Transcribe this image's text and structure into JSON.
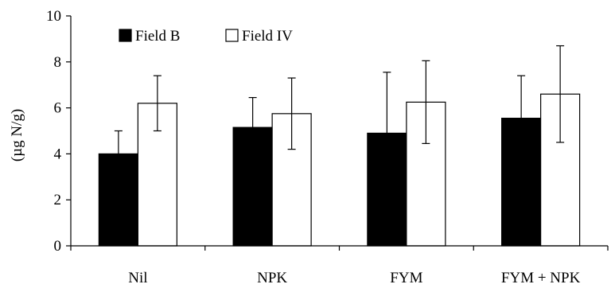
{
  "chart_data": {
    "type": "bar",
    "title": "",
    "xlabel": "",
    "ylabel": "(µg N/g)",
    "ylim": [
      0,
      10
    ],
    "yticks": [
      0,
      2,
      4,
      6,
      8,
      10
    ],
    "grid": false,
    "legend_position": "top-left",
    "categories": [
      "Nil",
      "NPK",
      "FYM",
      "FYM + NPK"
    ],
    "series": [
      {
        "name": "Field B",
        "color": "#000000",
        "values": [
          4.0,
          5.15,
          4.9,
          5.55
        ],
        "error": [
          1.0,
          1.3,
          2.65,
          1.85
        ]
      },
      {
        "name": "Field IV",
        "color": "#ffffff",
        "values": [
          6.2,
          5.75,
          6.25,
          6.6
        ],
        "error": [
          1.2,
          1.55,
          1.8,
          2.1
        ]
      }
    ]
  }
}
